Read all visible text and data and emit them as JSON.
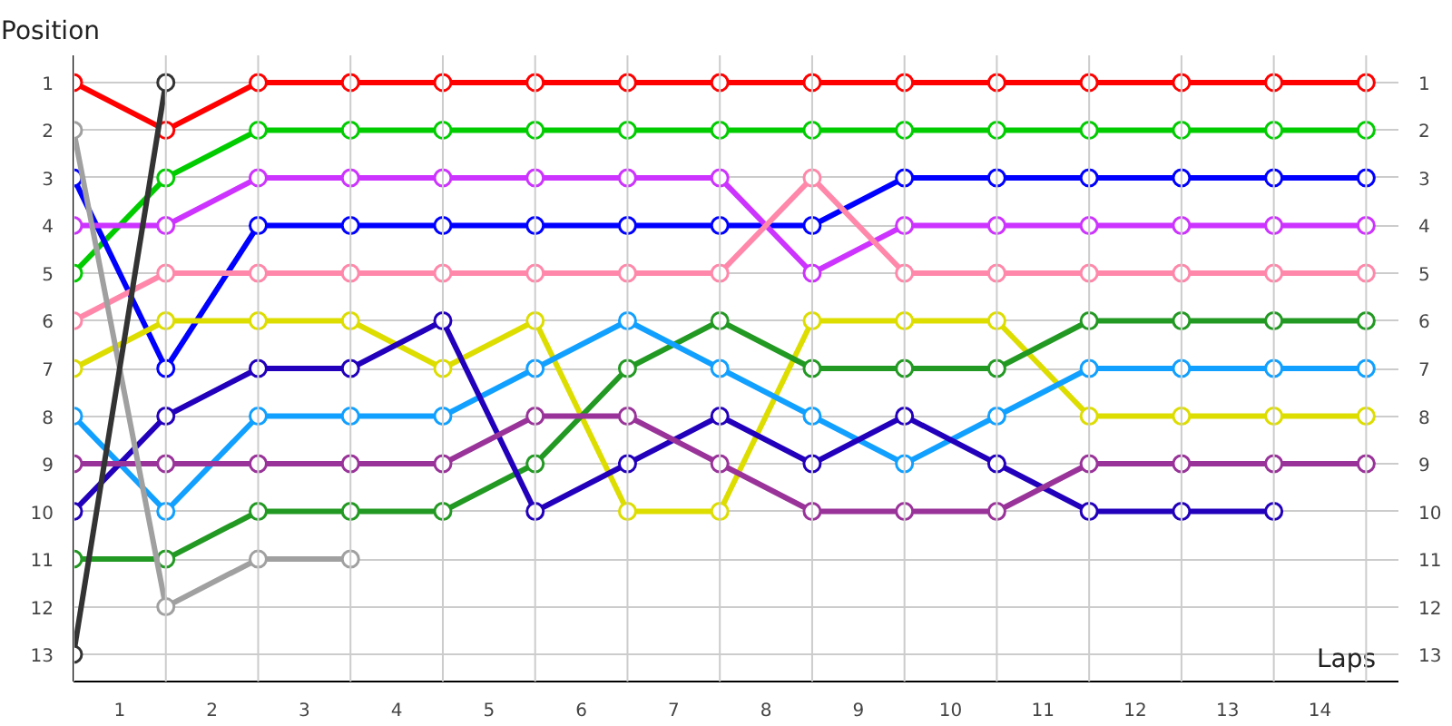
{
  "chart_data": {
    "type": "line",
    "xlabel": "Laps",
    "ylabel": "Position",
    "x": [
      0,
      1,
      2,
      3,
      4,
      5,
      6,
      7,
      8,
      9,
      10,
      11,
      12,
      13,
      14
    ],
    "xlim": [
      0,
      14.35
    ],
    "ylim": [
      13.57,
      0.43
    ],
    "y2lim": [
      13.57,
      0.43
    ],
    "xticks": [
      {
        "value": 0,
        "label": null
      },
      {
        "value": 0.5,
        "label": "1"
      },
      {
        "value": 1,
        "label": null
      },
      {
        "value": 1.5,
        "label": "2"
      },
      {
        "value": 2,
        "label": null
      },
      {
        "value": 2.5,
        "label": "3"
      },
      {
        "value": 3,
        "label": null
      },
      {
        "value": 3.5,
        "label": "4"
      },
      {
        "value": 4,
        "label": null
      },
      {
        "value": 4.5,
        "label": "5"
      },
      {
        "value": 5,
        "label": null
      },
      {
        "value": 5.5,
        "label": "6"
      },
      {
        "value": 6,
        "label": null
      },
      {
        "value": 6.5,
        "label": "7"
      },
      {
        "value": 7,
        "label": null
      },
      {
        "value": 7.5,
        "label": "8"
      },
      {
        "value": 8,
        "label": null
      },
      {
        "value": 8.5,
        "label": "9"
      },
      {
        "value": 9,
        "label": null
      },
      {
        "value": 9.5,
        "label": "10"
      },
      {
        "value": 10,
        "label": null
      },
      {
        "value": 10.5,
        "label": "11"
      },
      {
        "value": 11,
        "label": null
      },
      {
        "value": 11.5,
        "label": "12"
      },
      {
        "value": 12,
        "label": null
      },
      {
        "value": 12.5,
        "label": "13"
      },
      {
        "value": 13,
        "label": null
      },
      {
        "value": 13.5,
        "label": "14"
      },
      {
        "value": 14,
        "label": null
      }
    ],
    "yticks": [
      1,
      2,
      3,
      4,
      5,
      6,
      7,
      8,
      9,
      10,
      11,
      12,
      13
    ],
    "y2ticks": [
      1,
      2,
      3,
      4,
      5,
      6,
      7,
      8,
      9,
      10,
      11,
      12,
      13
    ],
    "grid": true,
    "marker": "circle",
    "line_style": "solid",
    "series": [
      {
        "color": "#ff0000",
        "values": [
          1,
          2,
          1,
          1,
          1,
          1,
          1,
          1,
          1,
          1,
          1,
          1,
          1,
          1,
          1
        ]
      },
      {
        "color": "#00cc00",
        "values": [
          5,
          3,
          2,
          2,
          2,
          2,
          2,
          2,
          2,
          2,
          2,
          2,
          2,
          2,
          2
        ]
      },
      {
        "color": "#0000ff",
        "values": [
          3,
          7,
          4,
          4,
          4,
          4,
          4,
          4,
          4,
          3,
          3,
          3,
          3,
          3,
          3
        ]
      },
      {
        "color": "#cc33ff",
        "values": [
          4,
          4,
          3,
          3,
          3,
          3,
          3,
          3,
          5,
          4,
          4,
          4,
          4,
          4,
          4
        ]
      },
      {
        "color": "#ff88aa",
        "values": [
          6,
          5,
          5,
          5,
          5,
          5,
          5,
          5,
          3,
          5,
          5,
          5,
          5,
          5,
          5
        ]
      },
      {
        "color": "#dddd00",
        "values": [
          7,
          6,
          6,
          6,
          7,
          6,
          10,
          10,
          6,
          6,
          6,
          8,
          8,
          8,
          8
        ]
      },
      {
        "color": "#229922",
        "values": [
          11,
          11,
          10,
          10,
          10,
          9,
          7,
          6,
          7,
          7,
          7,
          6,
          6,
          6,
          6
        ]
      },
      {
        "color": "#11a0ff",
        "values": [
          8,
          10,
          8,
          8,
          8,
          7,
          6,
          7,
          8,
          9,
          8,
          7,
          7,
          7,
          7
        ]
      },
      {
        "color": "#2200bb",
        "values": [
          10,
          8,
          7,
          7,
          6,
          10,
          9,
          8,
          9,
          8,
          9,
          10,
          10,
          10,
          null
        ]
      },
      {
        "color": "#993399",
        "values": [
          9,
          9,
          9,
          9,
          9,
          8,
          8,
          9,
          10,
          10,
          10,
          9,
          9,
          9,
          9
        ]
      },
      {
        "color": "#a0a0a0",
        "values": [
          2,
          12,
          11,
          11,
          null,
          null,
          null,
          null,
          null,
          null,
          null,
          null,
          null,
          null,
          null
        ]
      },
      {
        "color": "#333333",
        "values": [
          13,
          1,
          null,
          null,
          null,
          null,
          null,
          null,
          null,
          null,
          null,
          null,
          null,
          null,
          null
        ]
      }
    ]
  }
}
